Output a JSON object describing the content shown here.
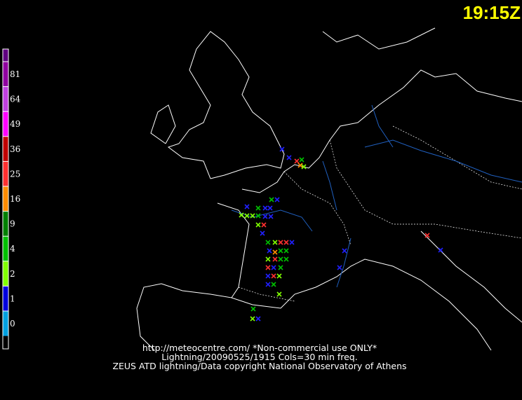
{
  "header": {
    "time": "19:15Z"
  },
  "legend": [
    {
      "label": "81",
      "color": "#9000a0"
    },
    {
      "label": "64",
      "color": "#c040e0"
    },
    {
      "label": "49",
      "color": "#ff00ff"
    },
    {
      "label": "36",
      "color": "#c00000"
    },
    {
      "label": "25",
      "color": "#ff3030"
    },
    {
      "label": "16",
      "color": "#ff8c00"
    },
    {
      "label": "9",
      "color": "#008000"
    },
    {
      "label": "4",
      "color": "#00c000"
    },
    {
      "label": "2",
      "color": "#80ff00"
    },
    {
      "label": "1",
      "color": "#0000e0"
    },
    {
      "label": "0",
      "color": "#00a0e0"
    }
  ],
  "footer": {
    "lines": [
      "http://meteocentre.com/ *Non-commercial use ONLY*",
      "Lightning/20090525/1915 Cols=30 min freq.",
      "ZEUS ATD lightning/Data copyright National Observatory of Athens"
    ]
  }
}
